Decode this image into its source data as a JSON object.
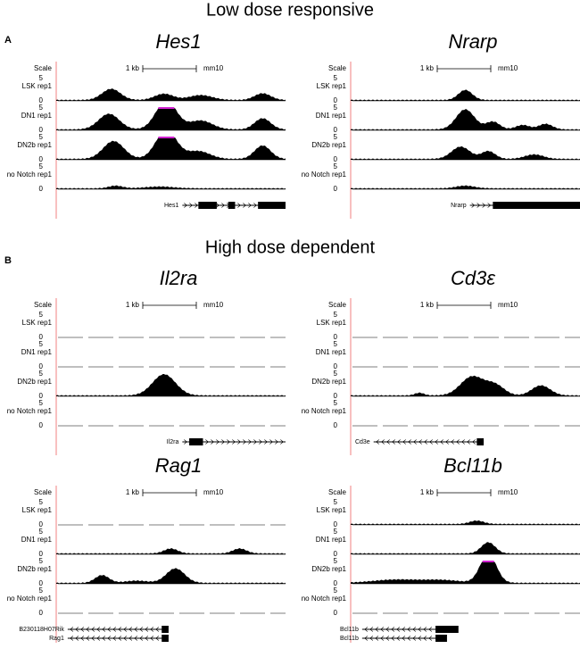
{
  "sections": [
    {
      "letter": "A",
      "title": "Low dose responsive",
      "panels": [
        {
          "gene": "Hes1",
          "scale": "Scale",
          "scale_bar": "1 kb",
          "assembly": "mm10",
          "tracks": [
            {
              "name": "LSK rep1",
              "ymax": 5,
              "ymin": 0
            },
            {
              "name": "DN1 rep1",
              "ymax": 5,
              "ymin": 0
            },
            {
              "name": "DN2b rep1",
              "ymax": 5,
              "ymin": 0
            },
            {
              "name": "no Notch rep1",
              "ymax": 5,
              "ymin": 0
            }
          ],
          "annotations": [
            "Hes1"
          ]
        },
        {
          "gene": "Nrarp",
          "scale": "Scale",
          "scale_bar": "1 kb",
          "assembly": "mm10",
          "tracks": [
            {
              "name": "LSK rep1",
              "ymax": 5,
              "ymin": 0
            },
            {
              "name": "DN1 rep1",
              "ymax": 5,
              "ymin": 0
            },
            {
              "name": "DN2b rep1",
              "ymax": 5,
              "ymin": 0
            },
            {
              "name": "no Notch rep1",
              "ymax": 5,
              "ymin": 0
            }
          ],
          "annotations": [
            "Nrarp"
          ]
        }
      ]
    },
    {
      "letter": "B",
      "title": "High dose dependent",
      "panels": [
        {
          "gene": "Il2ra",
          "scale": "Scale",
          "scale_bar": "1 kb",
          "assembly": "mm10",
          "tracks": [
            {
              "name": "LSK rep1",
              "ymax": 5,
              "ymin": 0
            },
            {
              "name": "DN1 rep1",
              "ymax": 5,
              "ymin": 0
            },
            {
              "name": "DN2b rep1",
              "ymax": 5,
              "ymin": 0
            },
            {
              "name": "no Notch rep1",
              "ymax": 5,
              "ymin": 0
            }
          ],
          "annotations": [
            "Il2ra"
          ]
        },
        {
          "gene": "Cd3ε",
          "scale": "Scale",
          "scale_bar": "1 kb",
          "assembly": "mm10",
          "tracks": [
            {
              "name": "LSK rep1",
              "ymax": 5,
              "ymin": 0
            },
            {
              "name": "DN1 rep1",
              "ymax": 5,
              "ymin": 0
            },
            {
              "name": "DN2b rep1",
              "ymax": 5,
              "ymin": 0
            },
            {
              "name": "no Notch rep1",
              "ymax": 5,
              "ymin": 0
            }
          ],
          "annotations": [
            "Cd3e"
          ]
        },
        {
          "gene": "Rag1",
          "scale": "Scale",
          "scale_bar": "1 kb",
          "assembly": "mm10",
          "tracks": [
            {
              "name": "LSK rep1",
              "ymax": 5,
              "ymin": 0
            },
            {
              "name": "DN1 rep1",
              "ymax": 5,
              "ymin": 0
            },
            {
              "name": "DN2b rep1",
              "ymax": 5,
              "ymin": 0
            },
            {
              "name": "no Notch rep1",
              "ymax": 5,
              "ymin": 0
            }
          ],
          "annotations": [
            "B230118H07Rik",
            "Rag1"
          ]
        },
        {
          "gene": "Bcl11b",
          "scale": "Scale",
          "scale_bar": "1 kb",
          "assembly": "mm10",
          "tracks": [
            {
              "name": "LSK rep1",
              "ymax": 5,
              "ymin": 0
            },
            {
              "name": "DN1 rep1",
              "ymax": 5,
              "ymin": 0
            },
            {
              "name": "DN2b rep1",
              "ymax": 5,
              "ymin": 0
            },
            {
              "name": "no Notch rep1",
              "ymax": 5,
              "ymin": 0
            }
          ],
          "annotations": [
            "Bcl11b",
            "Bcl11b"
          ]
        }
      ]
    }
  ]
}
